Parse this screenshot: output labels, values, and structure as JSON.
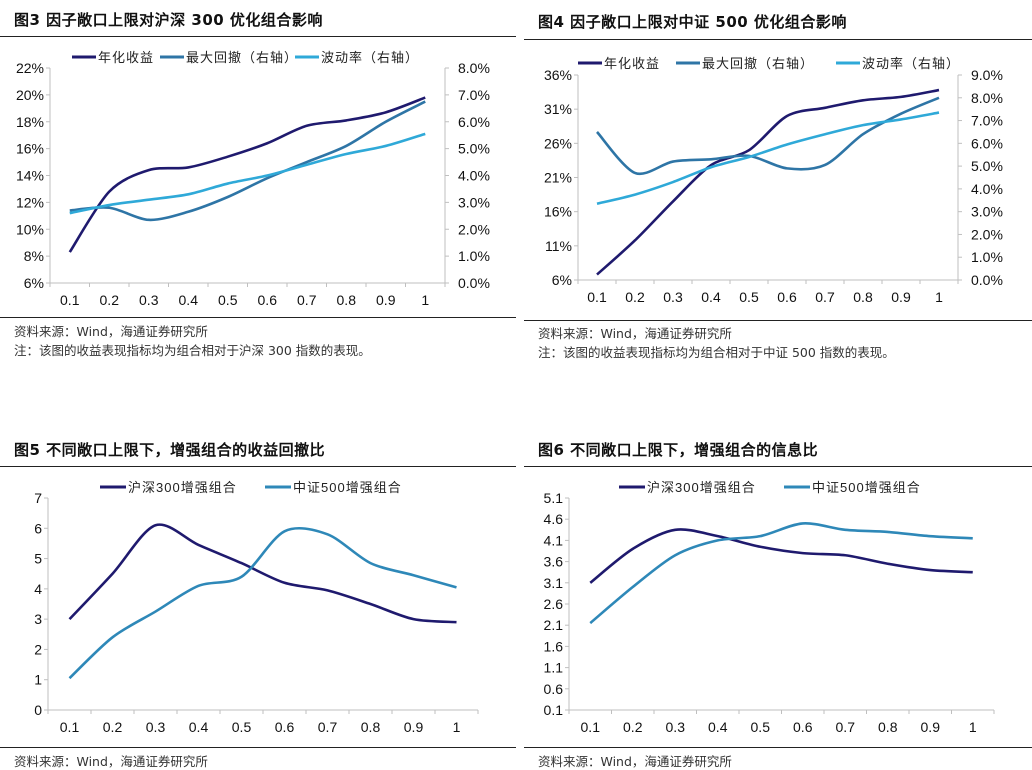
{
  "colors": {
    "navy": "#1f1a6e",
    "medium": "#2e75a6",
    "light": "#2fa9d8",
    "axis": "#bfbfbf"
  },
  "chart_data": [
    {
      "id": "fig3",
      "type": "line",
      "title": "图3  因子敞口上限对沪深 300 优化组合影响",
      "source": "资料来源：Wind，海通证券研究所",
      "note": "注：该图的收益表现指标均为组合相对于沪深 300 指数的表现。",
      "categories": [
        "0.1",
        "0.2",
        "0.3",
        "0.4",
        "0.5",
        "0.6",
        "0.7",
        "0.8",
        "0.9",
        "1"
      ],
      "y_left": {
        "ylim": [
          6,
          22
        ],
        "ticks": [
          "6%",
          "8%",
          "10%",
          "12%",
          "14%",
          "16%",
          "18%",
          "20%",
          "22%"
        ],
        "unit": "%"
      },
      "y_right": {
        "ylim": [
          0,
          8
        ],
        "ticks": [
          "0.0%",
          "1.0%",
          "2.0%",
          "3.0%",
          "4.0%",
          "5.0%",
          "6.0%",
          "7.0%",
          "8.0%"
        ],
        "unit": "%"
      },
      "legend_position": "top",
      "grid": false,
      "series": [
        {
          "name": "年化收益",
          "axis": "left",
          "color": "#1f1a6e",
          "values": [
            8.3,
            12.8,
            14.4,
            14.6,
            15.4,
            16.4,
            17.7,
            18.1,
            18.7,
            19.8
          ]
        },
        {
          "name": "最大回撤（右轴）",
          "axis": "right",
          "color": "#2e75a6",
          "values": [
            2.7,
            2.8,
            2.35,
            2.65,
            3.2,
            3.9,
            4.5,
            5.1,
            6.0,
            6.75
          ]
        },
        {
          "name": "波动率（右轴）",
          "axis": "right",
          "color": "#2fa9d8",
          "values": [
            2.6,
            2.9,
            3.1,
            3.3,
            3.7,
            4.0,
            4.4,
            4.8,
            5.1,
            5.55
          ]
        }
      ]
    },
    {
      "id": "fig4",
      "type": "line",
      "title": "图4  因子敞口上限对中证 500 优化组合影响",
      "source": "资料来源：Wind，海通证券研究所",
      "note": "注：该图的收益表现指标均为组合相对于中证 500 指数的表现。",
      "categories": [
        "0.1",
        "0.2",
        "0.3",
        "0.4",
        "0.5",
        "0.6",
        "0.7",
        "0.8",
        "0.9",
        "1"
      ],
      "y_left": {
        "ylim": [
          6,
          36
        ],
        "ticks": [
          "6%",
          "11%",
          "16%",
          "21%",
          "26%",
          "31%",
          "36%"
        ],
        "unit": "%"
      },
      "y_right": {
        "ylim": [
          0,
          9
        ],
        "ticks": [
          "0.0%",
          "1.0%",
          "2.0%",
          "3.0%",
          "4.0%",
          "5.0%",
          "6.0%",
          "7.0%",
          "8.0%",
          "9.0%"
        ],
        "unit": "%"
      },
      "legend_position": "top",
      "grid": false,
      "series": [
        {
          "name": "年化收益",
          "axis": "left",
          "color": "#1f1a6e",
          "values": [
            6.8,
            11.8,
            17.5,
            22.8,
            25.0,
            30.0,
            31.2,
            32.3,
            32.8,
            33.8
          ]
        },
        {
          "name": "最大回撤（右轴）",
          "axis": "right",
          "color": "#2e75a6",
          "values": [
            6.5,
            4.7,
            5.2,
            5.3,
            5.45,
            4.9,
            5.05,
            6.4,
            7.3,
            8.0
          ]
        },
        {
          "name": "波动率（右轴）",
          "axis": "right",
          "color": "#2fa9d8",
          "values": [
            3.35,
            3.75,
            4.3,
            4.95,
            5.4,
            5.95,
            6.4,
            6.8,
            7.05,
            7.35
          ]
        }
      ]
    },
    {
      "id": "fig5",
      "type": "line",
      "title": "图5  不同敞口上限下，增强组合的收益回撤比",
      "source": "资料来源：Wind，海通证券研究所",
      "categories": [
        "0.1",
        "0.2",
        "0.3",
        "0.4",
        "0.5",
        "0.6",
        "0.7",
        "0.8",
        "0.9",
        "1"
      ],
      "y_left": {
        "ylim": [
          0,
          7
        ],
        "ticks": [
          "0",
          "1",
          "2",
          "3",
          "4",
          "5",
          "6",
          "7"
        ]
      },
      "legend_position": "top",
      "grid": false,
      "series": [
        {
          "name": "沪深300增强组合",
          "axis": "left",
          "color": "#1f1a6e",
          "values": [
            3.0,
            4.5,
            6.1,
            5.45,
            4.85,
            4.2,
            3.95,
            3.5,
            3.0,
            2.9
          ]
        },
        {
          "name": "中证500增强组合",
          "axis": "left",
          "color": "#2e88b8",
          "values": [
            1.05,
            2.4,
            3.25,
            4.1,
            4.4,
            5.9,
            5.8,
            4.85,
            4.45,
            4.05
          ]
        }
      ]
    },
    {
      "id": "fig6",
      "type": "line",
      "title": "图6  不同敞口上限下，增强组合的信息比",
      "source": "资料来源：Wind，海通证券研究所",
      "categories": [
        "0.1",
        "0.2",
        "0.3",
        "0.4",
        "0.5",
        "0.6",
        "0.7",
        "0.8",
        "0.9",
        "1"
      ],
      "y_left": {
        "ylim": [
          0.1,
          5.1
        ],
        "ticks": [
          "0.1",
          "0.6",
          "1.1",
          "1.6",
          "2.1",
          "2.6",
          "3.1",
          "3.6",
          "4.1",
          "4.6",
          "5.1"
        ]
      },
      "legend_position": "top",
      "grid": false,
      "series": [
        {
          "name": "沪深300增强组合",
          "axis": "left",
          "color": "#1f1a6e",
          "values": [
            3.1,
            3.9,
            4.35,
            4.2,
            3.95,
            3.8,
            3.75,
            3.55,
            3.4,
            3.35
          ]
        },
        {
          "name": "中证500增强组合",
          "axis": "left",
          "color": "#2e88b8",
          "values": [
            2.15,
            3.0,
            3.75,
            4.1,
            4.2,
            4.5,
            4.35,
            4.3,
            4.2,
            4.15
          ]
        }
      ]
    }
  ]
}
